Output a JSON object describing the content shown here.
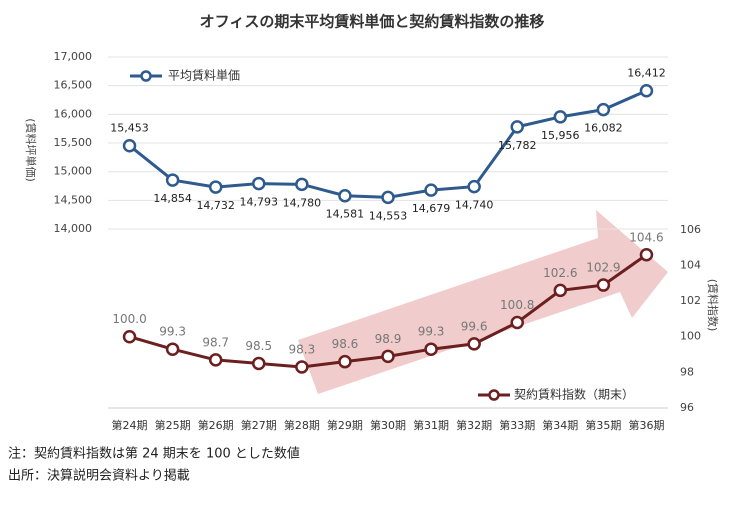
{
  "chart_data": {
    "type": "line",
    "title": "オフィスの期末平均賃料単価と契約賃料指数の推移",
    "categories": [
      "第24期",
      "第25期",
      "第26期",
      "第27期",
      "第28期",
      "第29期",
      "第30期",
      "第31期",
      "第32期",
      "第33期",
      "第34期",
      "第35期",
      "第36期"
    ],
    "ylabel": "(賃料坪単価)",
    "y2label": "(賃料指数)",
    "ylim": [
      10880,
      17000
    ],
    "yticks": [
      {
        "value": 14000,
        "label": "14,000"
      },
      {
        "value": 14500,
        "label": "14,500"
      },
      {
        "value": 15000,
        "label": "15,000"
      },
      {
        "value": 15500,
        "label": "15,500"
      },
      {
        "value": 16000,
        "label": "16,000"
      },
      {
        "value": 16500,
        "label": "16,500"
      },
      {
        "value": 17000,
        "label": "17,000"
      }
    ],
    "y2lim": [
      96,
      115.7
    ],
    "y2ticks": [
      96,
      98,
      100,
      102,
      104,
      106
    ],
    "grid": true,
    "series": [
      {
        "name": "平均賃料単価",
        "color": "#2e5a8e",
        "values": [
          15453,
          14854,
          14732,
          14793,
          14780,
          14581,
          14553,
          14679,
          14740,
          15782,
          15956,
          16082,
          16412
        ],
        "value_labels": [
          "15,453",
          "14,854",
          "14,732",
          "14,793",
          "14,780",
          "14,581",
          "14,553",
          "14,679",
          "14,740",
          "15,782",
          "15,956",
          "16,082",
          "16,412"
        ]
      },
      {
        "name": "契約賃料指数（期末）",
        "color": "#6b1f1f",
        "axis": "y2",
        "values": [
          100.0,
          99.3,
          98.7,
          98.5,
          98.3,
          98.6,
          98.9,
          99.3,
          99.6,
          100.8,
          102.6,
          102.9,
          104.6
        ],
        "value_labels": [
          "100.0",
          "99.3",
          "98.7",
          "98.5",
          "98.3",
          "98.6",
          "98.9",
          "99.3",
          "99.6",
          "100.8",
          "102.6",
          "102.9",
          "104.6"
        ]
      }
    ],
    "notes": [
      "注：契約賃料指数は第 24 期末を 100 とした数値",
      "出所：決算説明会資料より掲載"
    ]
  }
}
